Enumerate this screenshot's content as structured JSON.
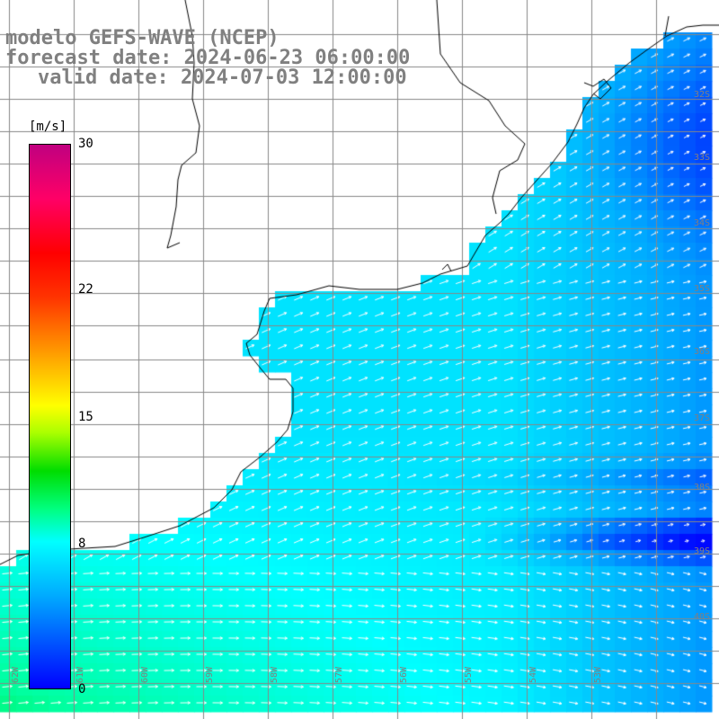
{
  "titles": {
    "model": "modelo GEFS-WAVE (NCEP)",
    "forecast": "forecast date: 2024-06-23 06:00:00",
    "valid": "valid date: 2024-07-03 12:00:00"
  },
  "colorbar": {
    "unit": "[m/s]",
    "ticks": [
      {
        "label": "30",
        "value": 30
      },
      {
        "label": "22",
        "value": 22
      },
      {
        "label": "15",
        "value": 15
      },
      {
        "label": "8",
        "value": 8
      },
      {
        "label": "0",
        "value": 0
      }
    ],
    "range": [
      0,
      30
    ]
  },
  "map": {
    "latitude_labels": [
      "32S",
      "33S",
      "34S",
      "35S",
      "36S",
      "37S",
      "38S",
      "39S",
      "40S"
    ],
    "longitude_labels": [
      "62W",
      "61W",
      "60W",
      "59W",
      "58W",
      "57W",
      "56W",
      "55W",
      "54W",
      "53W"
    ],
    "wind_direction": "from west-southwest toward east-northeast",
    "colors": {
      "land": "#ffffff",
      "coast": "#000000",
      "grid": "#888888",
      "arrows": "#ffffff",
      "labels": "#808080"
    }
  }
}
